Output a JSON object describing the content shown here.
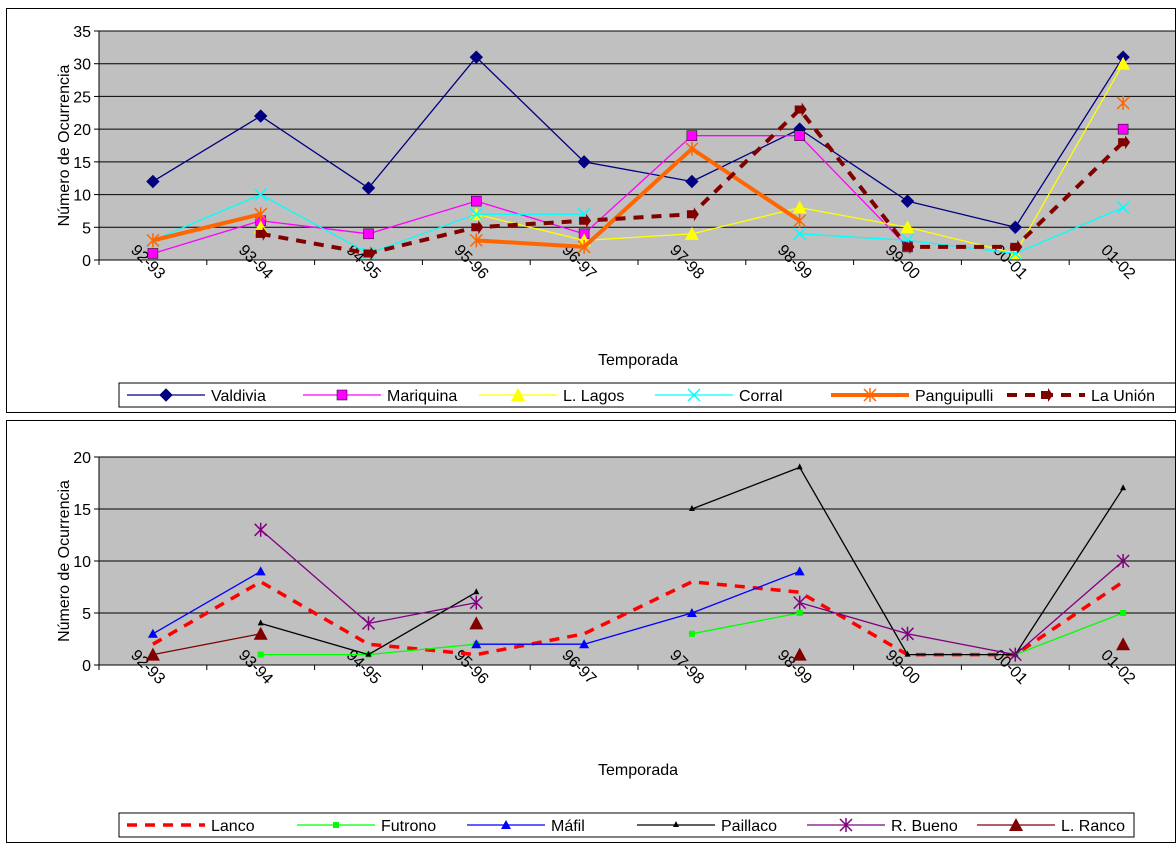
{
  "chart_data": [
    {
      "type": "line",
      "xlabel": "Temporada",
      "ylabel": "Número de Ocurrencia",
      "ylim": [
        0,
        35
      ],
      "yticks": [
        0,
        5,
        10,
        15,
        20,
        25,
        30,
        35
      ],
      "grid": true,
      "legend_position": "bottom",
      "categories": [
        "92-93",
        "93-94",
        "94-95",
        "95-96",
        "96-97",
        "97-98",
        "98-99",
        "99-00",
        "00-01",
        "01-02"
      ],
      "series": [
        {
          "name": "Valdivia",
          "color": "#000080",
          "marker": "diamond",
          "dash": "solid",
          "width": 1.3,
          "values": [
            12,
            22,
            11,
            31,
            15,
            12,
            20,
            9,
            5,
            31
          ]
        },
        {
          "name": "Mariquina",
          "color": "#FF00FF",
          "marker": "square",
          "dash": "solid",
          "width": 1.3,
          "values": [
            1,
            6,
            4,
            9,
            4,
            19,
            19,
            2,
            null,
            20
          ]
        },
        {
          "name": "L. Lagos",
          "color": "#FFFF00",
          "marker": "triangle",
          "dash": "solid",
          "width": 1.3,
          "values": [
            null,
            5,
            null,
            7,
            3,
            4,
            8,
            5,
            1,
            30
          ]
        },
        {
          "name": "Corral",
          "color": "#00FFFF",
          "marker": "x",
          "dash": "solid",
          "width": 1.3,
          "values": [
            3,
            10,
            1,
            7,
            7,
            null,
            4,
            3,
            1,
            8
          ]
        },
        {
          "name": "Panguipulli",
          "color": "#FF6600",
          "marker": "asterisk",
          "dash": "solid",
          "width": 4,
          "values": [
            3,
            7,
            null,
            3,
            2,
            17,
            6,
            null,
            null,
            24
          ]
        },
        {
          "name": "La Unión",
          "color": "#800000",
          "marker": "arrow",
          "dash": "dash",
          "width": 4,
          "values": [
            null,
            4,
            1,
            5,
            6,
            7,
            23,
            2,
            2,
            18
          ]
        }
      ]
    },
    {
      "type": "line",
      "xlabel": "Temporada",
      "ylabel": "Número de Ocurrencia",
      "ylim": [
        0,
        20
      ],
      "yticks": [
        0,
        5,
        10,
        15,
        20
      ],
      "grid": true,
      "legend_position": "bottom",
      "categories": [
        "92-93",
        "93-94",
        "94-95",
        "95-96",
        "96-97",
        "97-98",
        "98-99",
        "99-00",
        "00-01",
        "01-02"
      ],
      "series": [
        {
          "name": "Lanco",
          "color": "#FF0000",
          "marker": "none",
          "dash": "dash",
          "width": 3.5,
          "values": [
            2,
            8,
            2,
            1,
            3,
            8,
            7,
            1,
            1,
            8
          ]
        },
        {
          "name": "Futrono",
          "color": "#00FF00",
          "marker": "square-small",
          "dash": "solid",
          "width": 1.3,
          "values": [
            null,
            1,
            1,
            2,
            null,
            3,
            5,
            null,
            1,
            5
          ]
        },
        {
          "name": "Máfil",
          "color": "#0000FF",
          "marker": "triangle-small",
          "dash": "solid",
          "width": 1.3,
          "values": [
            3,
            9,
            null,
            2,
            2,
            5,
            9,
            null,
            null,
            null
          ]
        },
        {
          "name": "Paillaco",
          "color": "#000000",
          "marker": "triangle-tiny",
          "dash": "solid",
          "width": 1.3,
          "values": [
            null,
            4,
            1,
            7,
            null,
            15,
            19,
            1,
            1,
            17
          ]
        },
        {
          "name": "R. Bueno",
          "color": "#800080",
          "marker": "asterisk",
          "dash": "solid",
          "width": 1.3,
          "values": [
            null,
            13,
            4,
            6,
            null,
            null,
            6,
            3,
            1,
            10
          ]
        },
        {
          "name": "L. Ranco",
          "color": "#800000",
          "marker": "triangle",
          "dash": "solid",
          "width": 1.3,
          "values": [
            1,
            3,
            null,
            4,
            null,
            null,
            1,
            null,
            null,
            2
          ]
        }
      ]
    }
  ]
}
